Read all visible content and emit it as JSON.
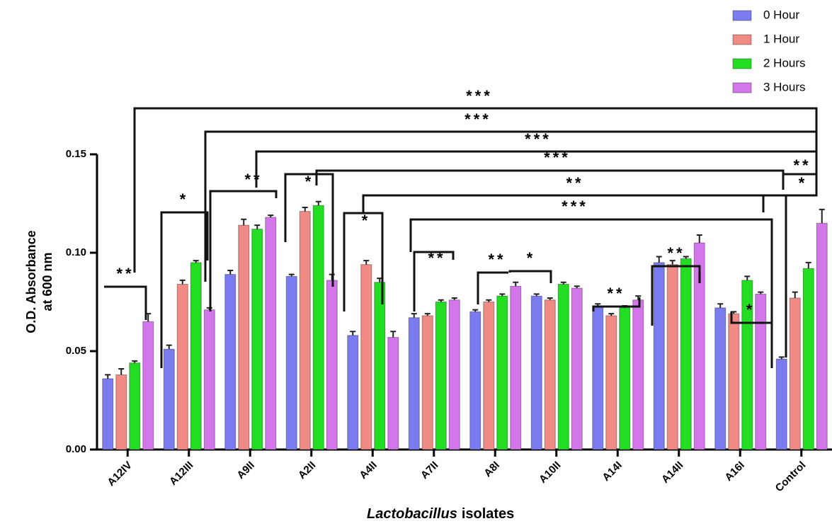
{
  "chart_data": {
    "type": "bar",
    "ylabel": [
      "O.D. Absorbance",
      "at 600 nm"
    ],
    "xlabel": [
      "Lactobacillus",
      "isolates"
    ],
    "categories": [
      "A12IV",
      "A12III",
      "A9II",
      "A2II",
      "A4II",
      "A7II",
      "A8I",
      "A10II",
      "A14I",
      "A14II",
      "A16I",
      "Control"
    ],
    "series": [
      {
        "name": "0 Hour",
        "color": "#7b7bf0",
        "values": [
          0.036,
          0.051,
          0.089,
          0.088,
          0.058,
          0.067,
          0.07,
          0.078,
          0.073,
          0.095,
          0.072,
          0.046
        ],
        "errors": [
          0.002,
          0.002,
          0.002,
          0.001,
          0.002,
          0.002,
          0.001,
          0.001,
          0.001,
          0.003,
          0.002,
          0.001
        ]
      },
      {
        "name": "1 Hour",
        "color": "#f08a84",
        "values": [
          0.038,
          0.084,
          0.114,
          0.121,
          0.094,
          0.068,
          0.075,
          0.076,
          0.068,
          0.094,
          0.069,
          0.077
        ],
        "errors": [
          0.003,
          0.002,
          0.003,
          0.002,
          0.002,
          0.001,
          0.001,
          0.001,
          0.001,
          0.002,
          0.001,
          0.003
        ]
      },
      {
        "name": "2 Hours",
        "color": "#22dd22",
        "values": [
          0.044,
          0.095,
          0.112,
          0.124,
          0.085,
          0.075,
          0.078,
          0.084,
          0.072,
          0.097,
          0.086,
          0.092
        ],
        "errors": [
          0.001,
          0.001,
          0.002,
          0.002,
          0.002,
          0.001,
          0.001,
          0.001,
          0.001,
          0.001,
          0.002,
          0.003
        ]
      },
      {
        "name": "3 Hours",
        "color": "#d276ea",
        "values": [
          0.065,
          0.071,
          0.118,
          0.086,
          0.057,
          0.076,
          0.083,
          0.082,
          0.076,
          0.105,
          0.079,
          0.115
        ],
        "errors": [
          0.004,
          0.001,
          0.001,
          0.003,
          0.003,
          0.001,
          0.002,
          0.001,
          0.002,
          0.004,
          0.001,
          0.007
        ]
      }
    ],
    "ylim": [
      0,
      0.15
    ],
    "yticks": [
      {
        "value": 0,
        "label": "0.00"
      },
      0.05,
      {
        "value": 0.1,
        "label": "0.10"
      },
      0.15
    ],
    "legend": "top-right",
    "annotations": [
      "**",
      "*",
      "**",
      "*",
      "*",
      "**",
      "**",
      "*",
      "**",
      "**",
      "*",
      "***",
      "***",
      "***",
      "***",
      "**",
      "*",
      "**",
      "***"
    ]
  }
}
